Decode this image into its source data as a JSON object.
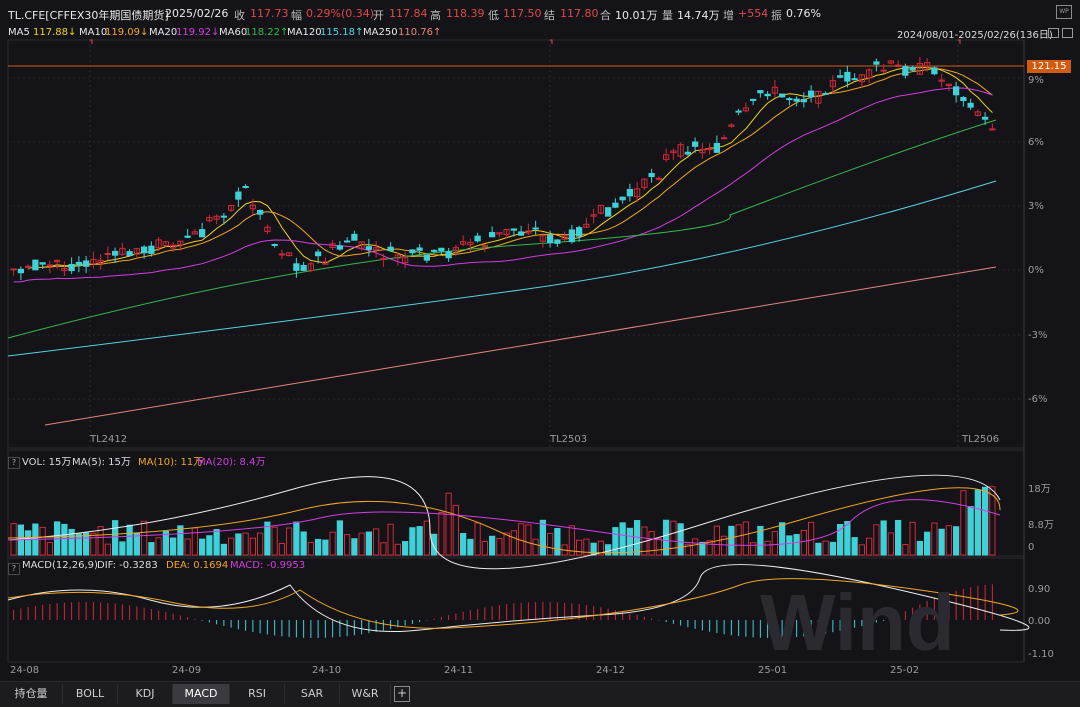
{
  "header": {
    "symbol": "TL.CFE[CFFEX30年期国债期货]",
    "date": "2025/02/26",
    "close_label": "收",
    "close_value": "117.73",
    "change_label": "幅",
    "change_value": "0.29%(0.34)",
    "open_label": "开",
    "open_value": "117.84",
    "high_label": "高",
    "high_value": "118.39",
    "low_label": "低",
    "low_value": "117.50",
    "settle_label": "结",
    "settle_value": "117.80",
    "oi_label": "合",
    "oi_value": "10.01万",
    "vol_label": "量",
    "vol_value": "14.74万",
    "inc_label": "增",
    "inc_value": "+554",
    "amp_label": "振",
    "amp_value": "0.76%",
    "logo_icon": "wind-app-icon"
  },
  "ma_legend": [
    {
      "name": "MA5",
      "value": "117.88↓",
      "color": "#f2d21f"
    },
    {
      "name": "MA10",
      "value": "119.09↓",
      "color": "#f1a622"
    },
    {
      "name": "MA20",
      "value": "119.92↓",
      "color": "#d23de0"
    },
    {
      "name": "MA60",
      "value": "118.22↑",
      "color": "#33b94a"
    },
    {
      "name": "MA120",
      "value": "115.18↑",
      "color": "#55d3e3"
    },
    {
      "name": "MA250",
      "value": "110.76↑",
      "color": "#e8847c"
    }
  ],
  "range_label": "2024/08/01-2025/02/26(136日)",
  "price_axis": {
    "ticks": [
      "9%",
      "6%",
      "3%",
      "0%",
      "-3%",
      "-6%"
    ],
    "highlight_value": "121.15"
  },
  "contract_labels": [
    "TL2412",
    "TL2503",
    "TL2506"
  ],
  "volume_panel": {
    "label": "VOL: 15万",
    "ma5": "MA(5): 15万",
    "ma10": "MA(10): 11万",
    "ma20": "MA(20): 8.4万",
    "ticks": [
      "18万",
      "8.8万",
      "0"
    ]
  },
  "macd_panel": {
    "label": "MACD(12,26,9)",
    "dif": "DIF: -0.3283",
    "dea": "DEA: 0.1694",
    "macd": "MACD: -0.9953",
    "ticks": [
      "0.90",
      "0.00",
      "-1.10"
    ]
  },
  "x_axis": [
    "24-08",
    "24-09",
    "24-10",
    "24-11",
    "24-12",
    "25-01",
    "25-02"
  ],
  "tabs": [
    "持仓量",
    "BOLL",
    "KDJ",
    "MACD",
    "RSI",
    "SAR",
    "W&R"
  ],
  "active_tab": "MACD",
  "watermark": "Wind",
  "colors": {
    "up": "#d0293a",
    "down": "#3fd0d8",
    "accent": "#d25b12",
    "bg": "#141418"
  }
}
